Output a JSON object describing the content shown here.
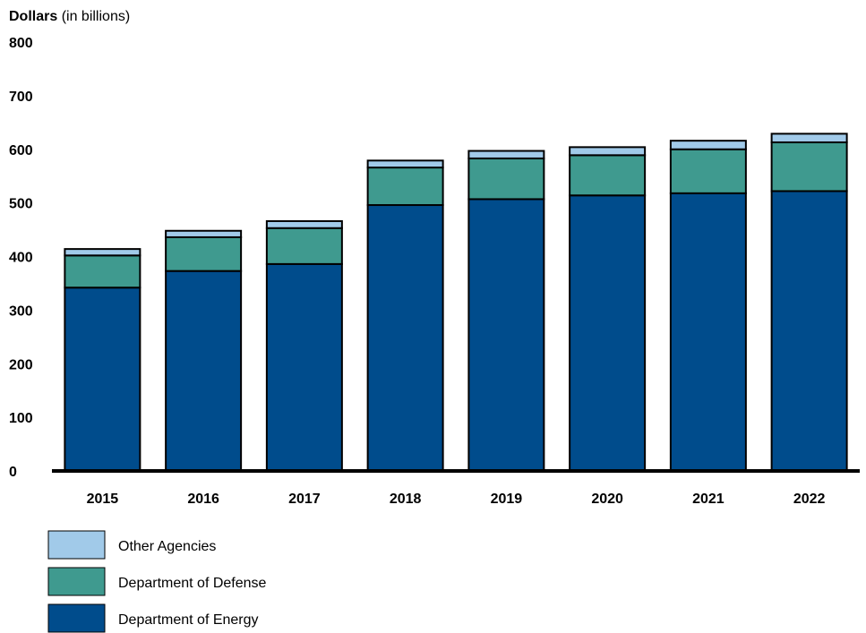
{
  "chart_data": {
    "type": "bar",
    "stacked": true,
    "ylabel": {
      "main": "Dollars",
      "unit": " (in billions)"
    },
    "ylim": [
      0,
      800
    ],
    "yticks": [
      0,
      100,
      200,
      300,
      400,
      500,
      600,
      700,
      800
    ],
    "grid": false,
    "legend_position": "bottom-left",
    "categories": [
      "2015",
      "2016",
      "2017",
      "2018",
      "2019",
      "2020",
      "2021",
      "2022"
    ],
    "series": [
      {
        "name": "Department of Energy",
        "color": "#004C8C",
        "values": [
          342,
          373,
          386,
          496,
          507,
          514,
          518,
          522
        ]
      },
      {
        "name": "Department of Defense",
        "color": "#3F9A8F",
        "values": [
          60,
          63,
          67,
          70,
          76,
          75,
          82,
          91
        ]
      },
      {
        "name": "Other Agencies",
        "color": "#A1CAE9",
        "values": [
          12,
          12,
          13,
          13,
          14,
          15,
          16,
          16
        ]
      }
    ],
    "legend_order": [
      "Other Agencies",
      "Department of Defense",
      "Department of Energy"
    ]
  }
}
